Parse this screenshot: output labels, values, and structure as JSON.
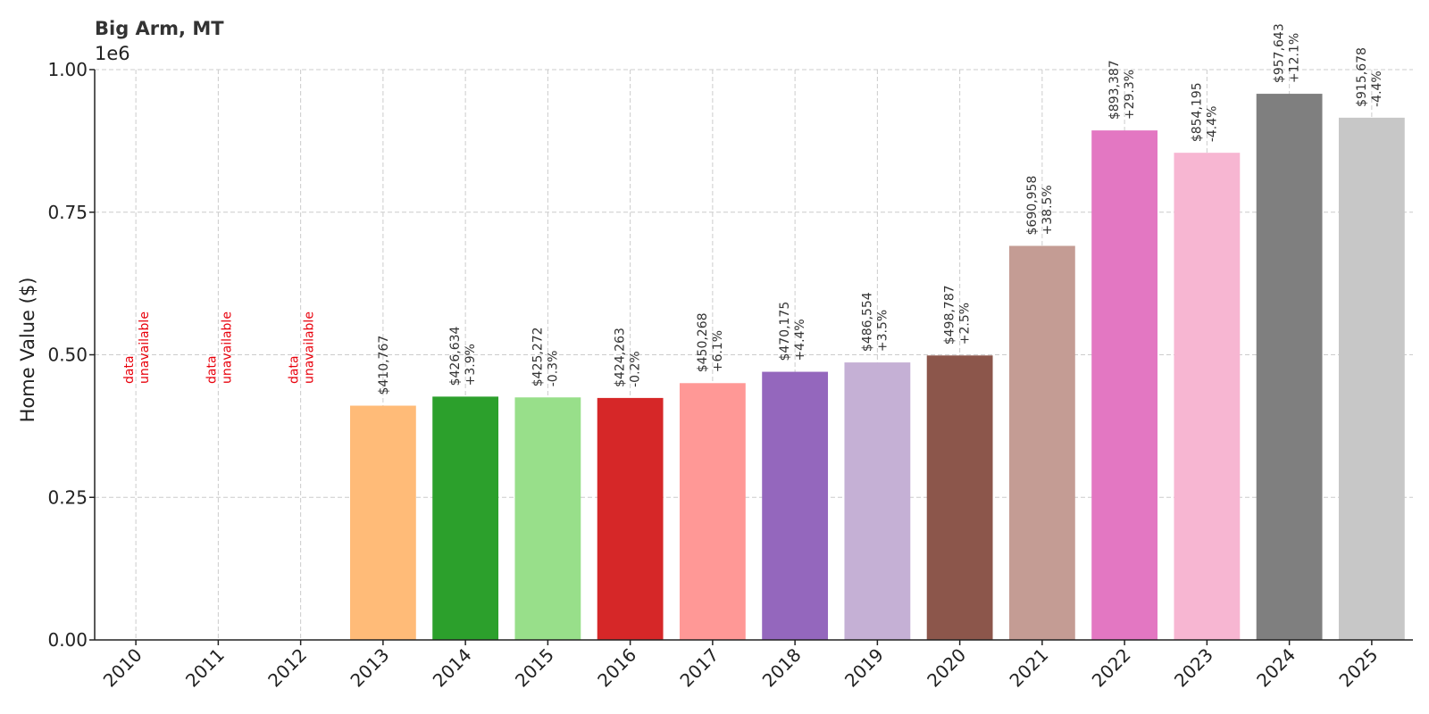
{
  "chart_data": {
    "type": "bar",
    "title": "Big Arm, MT",
    "ylabel": "Home Value ($)",
    "xlabel": "",
    "y_offset_label": "1e6",
    "ylim": [
      0,
      1000000
    ],
    "yticks": [
      0,
      250000,
      500000,
      750000,
      1000000
    ],
    "ytick_labels": [
      "0.00",
      "0.25",
      "0.50",
      "0.75",
      "1.00"
    ],
    "grid": true,
    "legend": "none",
    "categories": [
      "2010",
      "2011",
      "2012",
      "2013",
      "2014",
      "2015",
      "2016",
      "2017",
      "2018",
      "2019",
      "2020",
      "2021",
      "2022",
      "2023",
      "2024",
      "2025"
    ],
    "values": [
      null,
      null,
      null,
      410767,
      426634,
      425272,
      424263,
      450268,
      470175,
      486554,
      498787,
      690958,
      893387,
      854195,
      957643,
      915678
    ],
    "value_labels": [
      "",
      "",
      "",
      "$410,767",
      "$426,634",
      "$425,272",
      "$424,263",
      "$450,268",
      "$470,175",
      "$486,554",
      "$498,787",
      "$690,958",
      "$893,387",
      "$854,195",
      "$957,643",
      "$915,678"
    ],
    "change_labels": [
      "",
      "",
      "",
      "",
      "+3.9%",
      "-0.3%",
      "-0.2%",
      "+6.1%",
      "+4.4%",
      "+3.5%",
      "+2.5%",
      "+38.5%",
      "+29.3%",
      "-4.4%",
      "+12.1%",
      "-4.4%"
    ],
    "unavailable_label": [
      "data",
      "unavailable"
    ],
    "colors": [
      "#1f77b4",
      "#aec7e8",
      "#ff7f0e",
      "#ffbb78",
      "#2ca02c",
      "#98df8a",
      "#d62728",
      "#ff9896",
      "#9467bd",
      "#c5b0d5",
      "#8c564b",
      "#c49c94",
      "#e377c2",
      "#f7b6d2",
      "#7f7f7f",
      "#c7c7c7"
    ],
    "unavailable_color": "#e8000b"
  }
}
